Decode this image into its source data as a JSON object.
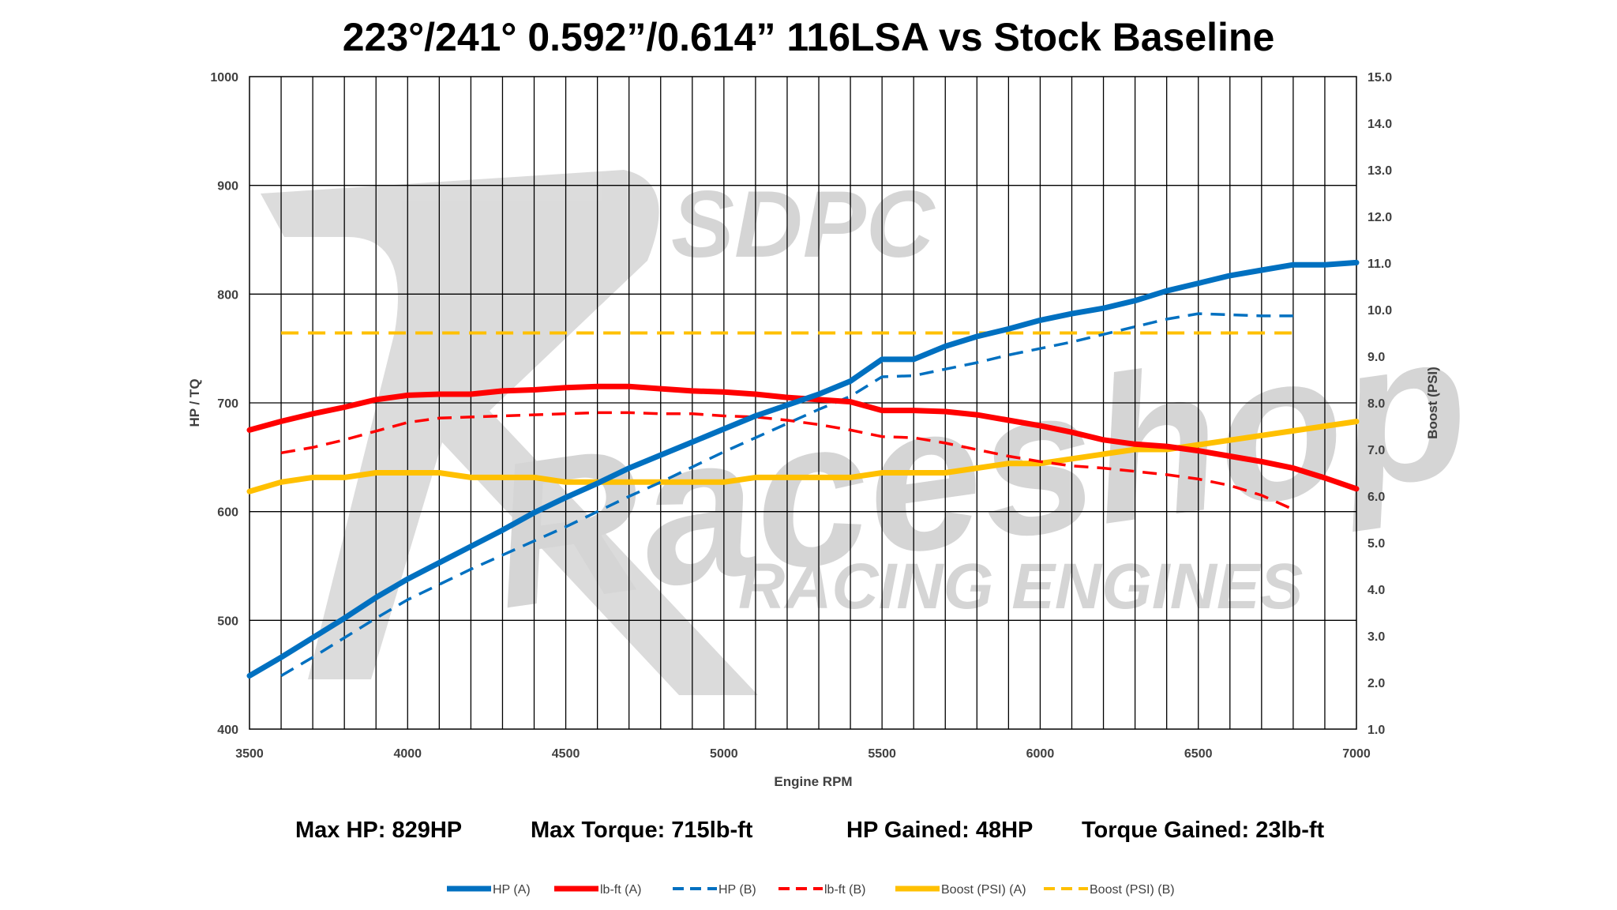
{
  "chart_data": {
    "type": "line",
    "title": "223°/241° 0.592”/0.614” 116LSA vs Stock Baseline",
    "xlabel": "Engine RPM",
    "ylabel": "HP / TQ",
    "y2label": "Boost (PSI)",
    "xlim": [
      3500,
      7000
    ],
    "ylim": [
      400,
      1000
    ],
    "y2lim": [
      1.0,
      15.0
    ],
    "x_ticks": [
      "3500",
      "4000",
      "4500",
      "5000",
      "5500",
      "6000",
      "6500",
      "7000"
    ],
    "y_ticks": [
      "400",
      "500",
      "600",
      "700",
      "800",
      "900",
      "1000"
    ],
    "y2_ticks": [
      "1.0",
      "2.0",
      "3.0",
      "4.0",
      "5.0",
      "6.0",
      "7.0",
      "8.0",
      "9.0",
      "10.0",
      "11.0",
      "12.0",
      "13.0",
      "14.0",
      "15.0"
    ],
    "grid": true,
    "legend_position": "bottom",
    "series": [
      {
        "name": "HP (A)",
        "axis": "left",
        "color": "#0070c0",
        "style": "solid",
        "x": [
          3500,
          3600,
          3700,
          3800,
          3900,
          4000,
          4100,
          4200,
          4300,
          4400,
          4500,
          4600,
          4700,
          4800,
          4900,
          5000,
          5100,
          5200,
          5300,
          5400,
          5500,
          5600,
          5700,
          5800,
          5900,
          6000,
          6100,
          6200,
          6300,
          6400,
          6500,
          6600,
          6700,
          6800,
          6900,
          7000
        ],
        "y": [
          449,
          466,
          484,
          502,
          521,
          538,
          553,
          568,
          583,
          599,
          613,
          626,
          640,
          652,
          664,
          676,
          688,
          698,
          708,
          720,
          740,
          740,
          752,
          761,
          768,
          776,
          782,
          787,
          794,
          803,
          810,
          817,
          822,
          827,
          827,
          829
        ]
      },
      {
        "name": "lb-ft (A)",
        "axis": "left",
        "color": "#ff0000",
        "style": "solid",
        "x": [
          3500,
          3600,
          3700,
          3800,
          3900,
          4000,
          4100,
          4200,
          4300,
          4400,
          4500,
          4600,
          4700,
          4800,
          4900,
          5000,
          5100,
          5200,
          5300,
          5400,
          5500,
          5600,
          5700,
          5800,
          5900,
          6000,
          6100,
          6200,
          6300,
          6400,
          6500,
          6600,
          6700,
          6800,
          6900,
          7000
        ],
        "y": [
          675,
          683,
          690,
          696,
          703,
          707,
          708,
          708,
          711,
          712,
          714,
          715,
          715,
          713,
          711,
          710,
          708,
          705,
          703,
          701,
          693,
          693,
          692,
          689,
          684,
          679,
          673,
          666,
          662,
          660,
          656,
          651,
          646,
          640,
          631,
          621
        ]
      },
      {
        "name": "HP (B)",
        "axis": "left",
        "color": "#0070c0",
        "style": "dashed",
        "x": [
          3600,
          3700,
          3800,
          3900,
          4000,
          4100,
          4200,
          4300,
          4400,
          4500,
          4600,
          4700,
          4800,
          4900,
          5000,
          5100,
          5200,
          5300,
          5400,
          5500,
          5600,
          5700,
          5800,
          5900,
          6000,
          6100,
          6200,
          6300,
          6400,
          6500,
          6600,
          6700,
          6800
        ],
        "y": [
          449,
          466,
          484,
          502,
          519,
          533,
          547,
          560,
          573,
          586,
          600,
          614,
          627,
          641,
          655,
          668,
          681,
          694,
          706,
          724,
          725,
          731,
          737,
          744,
          750,
          756,
          763,
          770,
          777,
          782,
          781,
          780,
          780
        ]
      },
      {
        "name": "lb-ft (B)",
        "axis": "left",
        "color": "#ff0000",
        "style": "dashed",
        "x": [
          3600,
          3700,
          3800,
          3900,
          4000,
          4100,
          4200,
          4300,
          4400,
          4500,
          4600,
          4700,
          4800,
          4900,
          5000,
          5100,
          5200,
          5300,
          5400,
          5500,
          5600,
          5700,
          5800,
          5900,
          6000,
          6100,
          6200,
          6300,
          6400,
          6500,
          6600,
          6700,
          6800
        ],
        "y": [
          654,
          659,
          666,
          674,
          682,
          686,
          687,
          688,
          689,
          690,
          691,
          691,
          690,
          690,
          688,
          687,
          684,
          680,
          675,
          669,
          668,
          663,
          657,
          651,
          646,
          642,
          640,
          637,
          634,
          630,
          624,
          615,
          602
        ]
      },
      {
        "name": "Boost (PSI) (A)",
        "axis": "right",
        "color": "#ffc000",
        "style": "solid",
        "x": [
          3500,
          3600,
          3700,
          3800,
          3900,
          4000,
          4100,
          4200,
          4300,
          4400,
          4500,
          4600,
          4700,
          4800,
          4900,
          5000,
          5100,
          5200,
          5300,
          5400,
          5500,
          5600,
          5700,
          5800,
          5900,
          6000,
          6100,
          6200,
          6300,
          6400,
          6500,
          6600,
          6700,
          6800,
          6900,
          7000
        ],
        "y": [
          6.1,
          6.3,
          6.4,
          6.4,
          6.5,
          6.5,
          6.5,
          6.4,
          6.4,
          6.4,
          6.3,
          6.3,
          6.3,
          6.3,
          6.3,
          6.3,
          6.4,
          6.4,
          6.4,
          6.4,
          6.5,
          6.5,
          6.5,
          6.6,
          6.7,
          6.7,
          6.8,
          6.9,
          7.0,
          7.0,
          7.1,
          7.2,
          7.3,
          7.4,
          7.5,
          7.6
        ]
      },
      {
        "name": "Boost (PSI) (B)",
        "axis": "right",
        "color": "#ffc000",
        "style": "dashed",
        "x": [
          3600,
          6800
        ],
        "y": [
          9.5,
          9.5
        ]
      }
    ]
  },
  "stats": {
    "max_hp": "Max HP: 829HP",
    "max_torque": "Max Torque: 715lb-ft",
    "hp_gained": "HP Gained: 48HP",
    "torque_gained": "Torque Gained: 23lb-ft"
  },
  "watermark": {
    "brand": "SDPC",
    "logo_word": "Raceshop",
    "tagline": "RACING ENGINES"
  }
}
